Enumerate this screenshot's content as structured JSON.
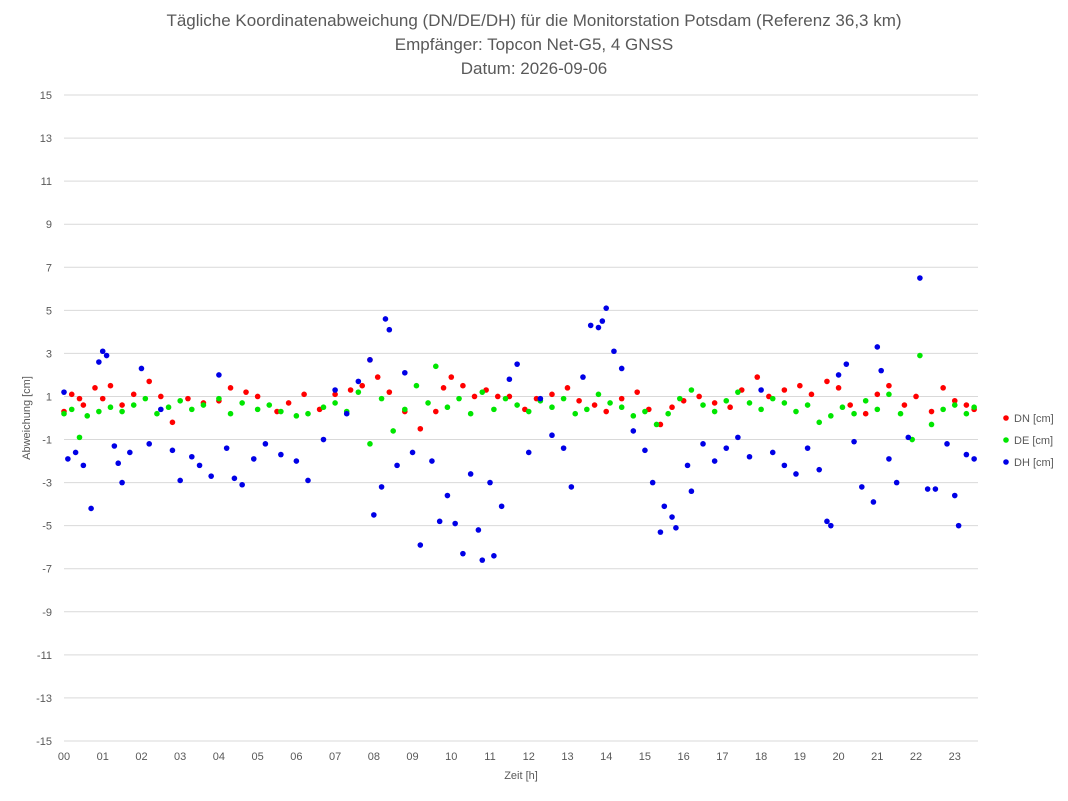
{
  "chart_data": {
    "type": "scatter",
    "title": "Tägliche Koordinatenabweichung (DN/DE/DH) für die Monitorstation Potsdam (Referenz 36,3 km)",
    "subtitle": "Empfänger: Topcon Net-G5, 4 GNSS",
    "date_line": "Datum: 2026-09-06",
    "xlabel": "Zeit [h]",
    "ylabel": "Abweichung [cm]",
    "xlim": [
      0,
      23.6
    ],
    "ylim": [
      -15,
      15
    ],
    "x_ticks": [
      "00",
      "01",
      "02",
      "03",
      "04",
      "05",
      "06",
      "07",
      "08",
      "09",
      "10",
      "11",
      "12",
      "13",
      "14",
      "15",
      "16",
      "17",
      "18",
      "19",
      "20",
      "21",
      "22",
      "23"
    ],
    "y_ticks": [
      15,
      13,
      11,
      9,
      7,
      5,
      3,
      1,
      -1,
      -3,
      -5,
      -7,
      -9,
      -11,
      -13,
      -15
    ],
    "grid": "horizontal",
    "legend_position": "right",
    "series": [
      {
        "name": "DN [cm]",
        "color": "#ff0000",
        "points": [
          [
            0.0,
            0.3
          ],
          [
            0.2,
            1.1
          ],
          [
            0.4,
            0.9
          ],
          [
            0.5,
            0.6
          ],
          [
            0.8,
            1.4
          ],
          [
            1.0,
            0.9
          ],
          [
            1.2,
            1.5
          ],
          [
            1.5,
            0.6
          ],
          [
            1.8,
            1.1
          ],
          [
            2.2,
            1.7
          ],
          [
            2.5,
            1.0
          ],
          [
            2.8,
            -0.2
          ],
          [
            3.2,
            0.9
          ],
          [
            3.6,
            0.7
          ],
          [
            4.0,
            0.8
          ],
          [
            4.3,
            1.4
          ],
          [
            4.7,
            1.2
          ],
          [
            5.0,
            1.0
          ],
          [
            5.5,
            0.3
          ],
          [
            5.8,
            0.7
          ],
          [
            6.2,
            1.1
          ],
          [
            6.6,
            0.4
          ],
          [
            7.0,
            1.1
          ],
          [
            7.4,
            1.3
          ],
          [
            7.7,
            1.5
          ],
          [
            7.9,
            2.7
          ],
          [
            8.1,
            1.9
          ],
          [
            8.4,
            1.2
          ],
          [
            8.8,
            0.3
          ],
          [
            9.2,
            -0.5
          ],
          [
            9.6,
            0.3
          ],
          [
            9.8,
            1.4
          ],
          [
            10.0,
            1.9
          ],
          [
            10.3,
            1.5
          ],
          [
            10.6,
            1.0
          ],
          [
            10.9,
            1.3
          ],
          [
            11.2,
            1.0
          ],
          [
            11.5,
            1.0
          ],
          [
            11.9,
            0.4
          ],
          [
            12.2,
            0.9
          ],
          [
            12.6,
            1.1
          ],
          [
            13.0,
            1.4
          ],
          [
            13.3,
            0.8
          ],
          [
            13.7,
            0.6
          ],
          [
            14.0,
            0.3
          ],
          [
            14.4,
            0.9
          ],
          [
            14.8,
            1.2
          ],
          [
            15.1,
            0.4
          ],
          [
            15.4,
            -0.3
          ],
          [
            15.7,
            0.5
          ],
          [
            16.0,
            0.8
          ],
          [
            16.4,
            1.0
          ],
          [
            16.8,
            0.7
          ],
          [
            17.2,
            0.5
          ],
          [
            17.5,
            1.3
          ],
          [
            17.9,
            1.9
          ],
          [
            18.2,
            1.0
          ],
          [
            18.6,
            1.3
          ],
          [
            19.0,
            1.5
          ],
          [
            19.3,
            1.1
          ],
          [
            19.7,
            1.7
          ],
          [
            20.0,
            1.4
          ],
          [
            20.3,
            0.6
          ],
          [
            20.7,
            0.2
          ],
          [
            21.0,
            1.1
          ],
          [
            21.3,
            1.5
          ],
          [
            21.7,
            0.6
          ],
          [
            22.0,
            1.0
          ],
          [
            22.4,
            0.3
          ],
          [
            22.7,
            1.4
          ],
          [
            23.0,
            0.8
          ],
          [
            23.3,
            0.6
          ],
          [
            23.5,
            0.4
          ]
        ]
      },
      {
        "name": "DE [cm]",
        "color": "#00e600",
        "points": [
          [
            0.0,
            0.2
          ],
          [
            0.2,
            0.4
          ],
          [
            0.4,
            -0.9
          ],
          [
            0.6,
            0.1
          ],
          [
            0.9,
            0.3
          ],
          [
            1.2,
            0.5
          ],
          [
            1.5,
            0.3
          ],
          [
            1.8,
            0.6
          ],
          [
            2.1,
            0.9
          ],
          [
            2.4,
            0.2
          ],
          [
            2.7,
            0.5
          ],
          [
            3.0,
            0.8
          ],
          [
            3.3,
            0.4
          ],
          [
            3.6,
            0.6
          ],
          [
            4.0,
            0.9
          ],
          [
            4.3,
            0.2
          ],
          [
            4.6,
            0.7
          ],
          [
            5.0,
            0.4
          ],
          [
            5.3,
            0.6
          ],
          [
            5.6,
            0.3
          ],
          [
            6.0,
            0.1
          ],
          [
            6.3,
            0.2
          ],
          [
            6.7,
            0.5
          ],
          [
            7.0,
            0.7
          ],
          [
            7.3,
            0.3
          ],
          [
            7.6,
            1.2
          ],
          [
            7.9,
            -1.2
          ],
          [
            8.2,
            0.9
          ],
          [
            8.5,
            -0.6
          ],
          [
            8.8,
            0.4
          ],
          [
            9.1,
            1.5
          ],
          [
            9.4,
            0.7
          ],
          [
            9.6,
            2.4
          ],
          [
            9.9,
            0.5
          ],
          [
            10.2,
            0.9
          ],
          [
            10.5,
            0.2
          ],
          [
            10.8,
            1.2
          ],
          [
            11.1,
            0.4
          ],
          [
            11.4,
            0.9
          ],
          [
            11.7,
            0.6
          ],
          [
            12.0,
            0.3
          ],
          [
            12.3,
            0.8
          ],
          [
            12.6,
            0.5
          ],
          [
            12.9,
            0.9
          ],
          [
            13.2,
            0.2
          ],
          [
            13.5,
            0.4
          ],
          [
            13.8,
            1.1
          ],
          [
            14.1,
            0.7
          ],
          [
            14.4,
            0.5
          ],
          [
            14.7,
            0.1
          ],
          [
            15.0,
            0.3
          ],
          [
            15.3,
            -0.3
          ],
          [
            15.6,
            0.2
          ],
          [
            15.9,
            0.9
          ],
          [
            16.2,
            1.3
          ],
          [
            16.5,
            0.6
          ],
          [
            16.8,
            0.3
          ],
          [
            17.1,
            0.8
          ],
          [
            17.4,
            1.2
          ],
          [
            17.7,
            0.7
          ],
          [
            18.0,
            0.4
          ],
          [
            18.3,
            0.9
          ],
          [
            18.6,
            0.7
          ],
          [
            18.9,
            0.3
          ],
          [
            19.2,
            0.6
          ],
          [
            19.5,
            -0.2
          ],
          [
            19.8,
            0.1
          ],
          [
            20.1,
            0.5
          ],
          [
            20.4,
            0.2
          ],
          [
            20.7,
            0.8
          ],
          [
            21.0,
            0.4
          ],
          [
            21.3,
            1.1
          ],
          [
            21.6,
            0.2
          ],
          [
            21.9,
            -1.0
          ],
          [
            22.1,
            2.9
          ],
          [
            22.4,
            -0.3
          ],
          [
            22.7,
            0.4
          ],
          [
            23.0,
            0.6
          ],
          [
            23.3,
            0.2
          ],
          [
            23.5,
            0.5
          ]
        ]
      },
      {
        "name": "DH [cm]",
        "color": "#0000e6",
        "points": [
          [
            0.0,
            1.2
          ],
          [
            0.1,
            -1.9
          ],
          [
            0.3,
            -1.6
          ],
          [
            0.5,
            -2.2
          ],
          [
            0.7,
            -4.2
          ],
          [
            0.9,
            2.6
          ],
          [
            1.0,
            3.1
          ],
          [
            1.1,
            2.9
          ],
          [
            1.3,
            -1.3
          ],
          [
            1.4,
            -2.1
          ],
          [
            1.5,
            -3.0
          ],
          [
            1.7,
            -1.6
          ],
          [
            2.0,
            2.3
          ],
          [
            2.2,
            -1.2
          ],
          [
            2.5,
            0.4
          ],
          [
            2.8,
            -1.5
          ],
          [
            3.0,
            -2.9
          ],
          [
            3.3,
            -1.8
          ],
          [
            3.5,
            -2.2
          ],
          [
            3.8,
            -2.7
          ],
          [
            4.0,
            2.0
          ],
          [
            4.2,
            -1.4
          ],
          [
            4.4,
            -2.8
          ],
          [
            4.6,
            -3.1
          ],
          [
            4.9,
            -1.9
          ],
          [
            5.2,
            -1.2
          ],
          [
            5.6,
            -1.7
          ],
          [
            6.0,
            -2.0
          ],
          [
            6.3,
            -2.9
          ],
          [
            6.7,
            -1.0
          ],
          [
            7.0,
            1.3
          ],
          [
            7.3,
            0.2
          ],
          [
            7.6,
            1.7
          ],
          [
            7.9,
            2.7
          ],
          [
            8.0,
            -4.5
          ],
          [
            8.2,
            -3.2
          ],
          [
            8.3,
            4.6
          ],
          [
            8.4,
            4.1
          ],
          [
            8.6,
            -2.2
          ],
          [
            8.8,
            2.1
          ],
          [
            9.0,
            -1.6
          ],
          [
            9.2,
            -5.9
          ],
          [
            9.5,
            -2.0
          ],
          [
            9.7,
            -4.8
          ],
          [
            9.9,
            -3.6
          ],
          [
            10.1,
            -4.9
          ],
          [
            10.3,
            -6.3
          ],
          [
            10.5,
            -2.6
          ],
          [
            10.7,
            -5.2
          ],
          [
            10.8,
            -6.6
          ],
          [
            11.0,
            -3.0
          ],
          [
            11.1,
            -6.4
          ],
          [
            11.3,
            -4.1
          ],
          [
            11.5,
            1.8
          ],
          [
            11.7,
            2.5
          ],
          [
            12.0,
            -1.6
          ],
          [
            12.3,
            0.9
          ],
          [
            12.6,
            -0.8
          ],
          [
            12.9,
            -1.4
          ],
          [
            13.1,
            -3.2
          ],
          [
            13.4,
            1.9
          ],
          [
            13.6,
            4.3
          ],
          [
            13.8,
            4.2
          ],
          [
            13.9,
            4.5
          ],
          [
            14.0,
            5.1
          ],
          [
            14.2,
            3.1
          ],
          [
            14.4,
            2.3
          ],
          [
            14.7,
            -0.6
          ],
          [
            15.0,
            -1.5
          ],
          [
            15.2,
            -3.0
          ],
          [
            15.4,
            -5.3
          ],
          [
            15.5,
            -4.1
          ],
          [
            15.7,
            -4.6
          ],
          [
            15.8,
            -5.1
          ],
          [
            16.1,
            -2.2
          ],
          [
            16.2,
            -3.4
          ],
          [
            16.5,
            -1.2
          ],
          [
            16.8,
            -2.0
          ],
          [
            17.1,
            -1.4
          ],
          [
            17.4,
            -0.9
          ],
          [
            17.7,
            -1.8
          ],
          [
            18.0,
            1.3
          ],
          [
            18.3,
            -1.6
          ],
          [
            18.6,
            -2.2
          ],
          [
            18.9,
            -2.6
          ],
          [
            19.2,
            -1.4
          ],
          [
            19.5,
            -2.4
          ],
          [
            19.7,
            -4.8
          ],
          [
            19.8,
            -5.0
          ],
          [
            20.0,
            2.0
          ],
          [
            20.2,
            2.5
          ],
          [
            20.4,
            -1.1
          ],
          [
            20.6,
            -3.2
          ],
          [
            20.9,
            -3.9
          ],
          [
            21.0,
            3.3
          ],
          [
            21.1,
            2.2
          ],
          [
            21.3,
            -1.9
          ],
          [
            21.5,
            -3.0
          ],
          [
            21.8,
            -0.9
          ],
          [
            22.1,
            6.5
          ],
          [
            22.3,
            -3.3
          ],
          [
            22.5,
            -3.3
          ],
          [
            22.8,
            -1.2
          ],
          [
            23.0,
            -3.6
          ],
          [
            23.1,
            -5.0
          ],
          [
            23.3,
            -1.7
          ],
          [
            23.5,
            -1.9
          ]
        ]
      }
    ]
  }
}
